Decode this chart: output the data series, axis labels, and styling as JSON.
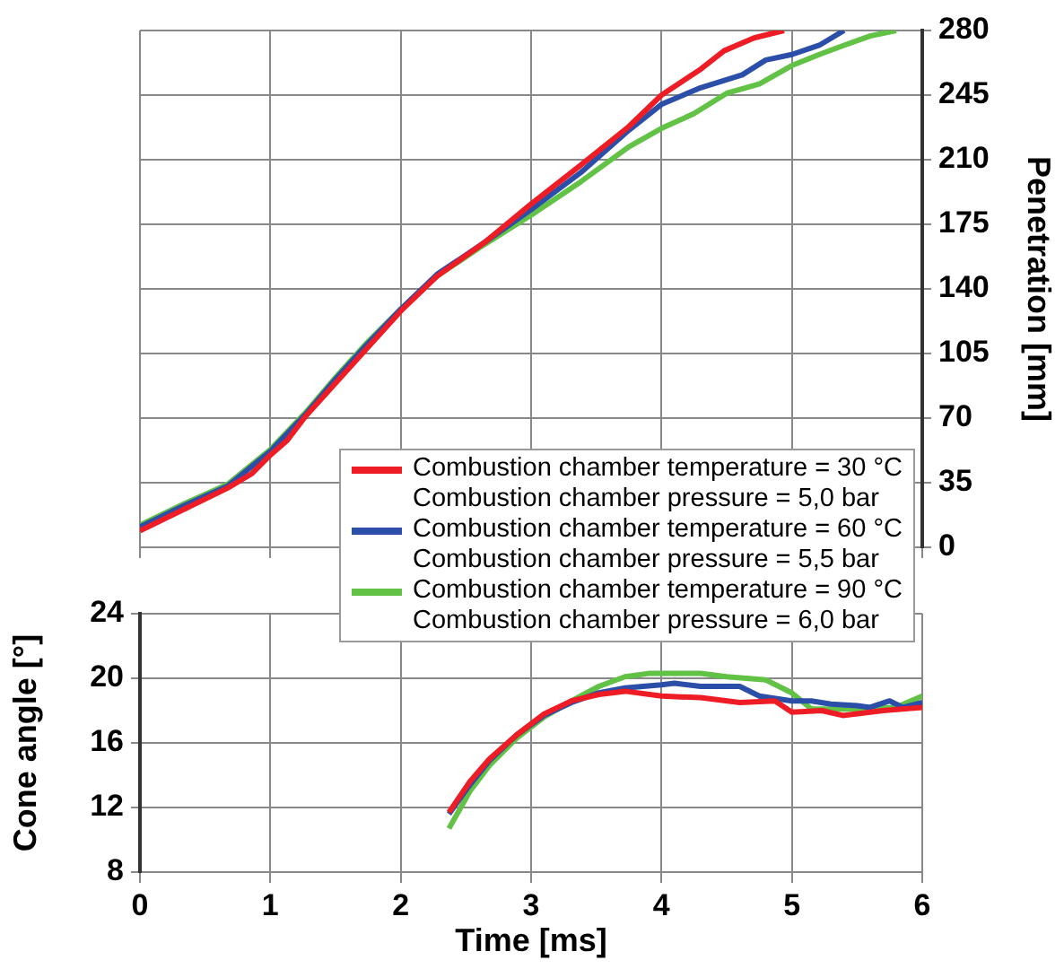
{
  "chart_data": [
    {
      "type": "line",
      "xlim": [
        0,
        6
      ],
      "xticks": [
        0,
        1,
        2,
        3,
        4,
        5,
        6
      ],
      "y2lim": [
        0,
        280
      ],
      "y2ticks": [
        0,
        35,
        70,
        105,
        140,
        175,
        210,
        245,
        280
      ],
      "y2label": "Penetration [mm]",
      "tick_labels": "y",
      "grid": true,
      "legend": "bottom right",
      "series": [
        {
          "name": "Combustion chamber temperature = 30 °C\nCombustion chamber pressure = 5,0 bar",
          "color": "#ee1c25",
          "axis": "y2",
          "x": [
            0,
            0.35,
            0.67,
            0.86,
            1.0,
            1.13,
            1.27,
            1.5,
            1.73,
            2.0,
            2.28,
            2.64,
            3.0,
            3.38,
            3.75,
            4.0,
            4.3,
            4.48,
            4.71,
            4.94
          ],
          "values": [
            9,
            21,
            32,
            40,
            50,
            58,
            71,
            89,
            107,
            128,
            147,
            165,
            186,
            207,
            228,
            245,
            259,
            269,
            276,
            280
          ]
        },
        {
          "name": "Combustion chamber temperature = 60 °C\nCombustion chamber pressure = 5,5 bar",
          "color": "#2b4fa8",
          "axis": "y2",
          "x": [
            0,
            0.35,
            0.67,
            1.0,
            1.27,
            1.5,
            1.73,
            2.0,
            2.28,
            2.64,
            3.0,
            3.38,
            3.75,
            4.0,
            4.3,
            4.62,
            4.8,
            5.0,
            5.21,
            5.4
          ],
          "values": [
            11,
            23,
            33,
            52,
            72,
            91,
            109,
            129,
            148,
            165,
            183,
            203,
            226,
            240,
            249,
            256,
            264,
            267,
            272,
            280
          ]
        },
        {
          "name": "Combustion chamber temperature = 90 °C\nCombustion chamber pressure = 6,0 bar",
          "color": "#62c245",
          "axis": "y2",
          "x": [
            0,
            0.35,
            0.67,
            1.0,
            1.27,
            1.5,
            1.73,
            2.0,
            2.28,
            2.64,
            3.0,
            3.38,
            3.75,
            4.0,
            4.25,
            4.5,
            4.75,
            5.0,
            5.21,
            5.4,
            5.6,
            5.8
          ],
          "values": [
            12,
            24,
            34,
            53,
            73,
            92,
            110,
            129,
            147,
            164,
            180,
            198,
            217,
            227,
            235,
            246,
            251,
            261,
            267,
            272,
            277,
            280
          ]
        }
      ]
    },
    {
      "type": "line",
      "xlim": [
        0,
        6
      ],
      "xticks": [
        0,
        1,
        2,
        3,
        4,
        5,
        6
      ],
      "ylim": [
        8,
        24
      ],
      "yticks": [
        8,
        12,
        16,
        20,
        24
      ],
      "xlabel": "Time [ms]",
      "ylabel": "Cone angle [°]",
      "grid": true,
      "series": [
        {
          "color": "#ee1c25",
          "x": [
            2.37,
            2.53,
            2.68,
            2.89,
            3.1,
            3.31,
            3.52,
            3.72,
            4.0,
            4.3,
            4.6,
            4.87,
            5.0,
            5.23,
            5.39,
            5.7,
            6.0
          ],
          "values": [
            11.7,
            13.6,
            15.0,
            16.5,
            17.8,
            18.6,
            19.0,
            19.2,
            18.9,
            18.8,
            18.5,
            18.6,
            17.9,
            18.0,
            17.7,
            18.0,
            18.2
          ]
        },
        {
          "color": "#2b4fa8",
          "x": [
            2.37,
            2.53,
            2.68,
            2.89,
            3.1,
            3.31,
            3.52,
            3.72,
            4.0,
            4.1,
            4.3,
            4.6,
            4.75,
            5.0,
            5.15,
            5.3,
            5.5,
            5.6,
            5.75,
            5.85,
            6.0
          ],
          "values": [
            11.6,
            13.4,
            14.9,
            16.5,
            17.7,
            18.5,
            19.1,
            19.4,
            19.6,
            19.7,
            19.5,
            19.5,
            18.9,
            18.6,
            18.6,
            18.4,
            18.3,
            18.2,
            18.6,
            18.2,
            18.5
          ]
        },
        {
          "color": "#62c245",
          "x": [
            2.37,
            2.53,
            2.68,
            2.89,
            3.1,
            3.31,
            3.52,
            3.72,
            3.9,
            4.3,
            4.5,
            4.8,
            5.0,
            5.15,
            5.5,
            5.8,
            6.0
          ],
          "values": [
            10.7,
            13.0,
            14.6,
            16.3,
            17.6,
            18.6,
            19.5,
            20.1,
            20.3,
            20.3,
            20.1,
            19.9,
            19.1,
            18.1,
            18.1,
            18.2,
            18.9
          ]
        }
      ]
    }
  ]
}
